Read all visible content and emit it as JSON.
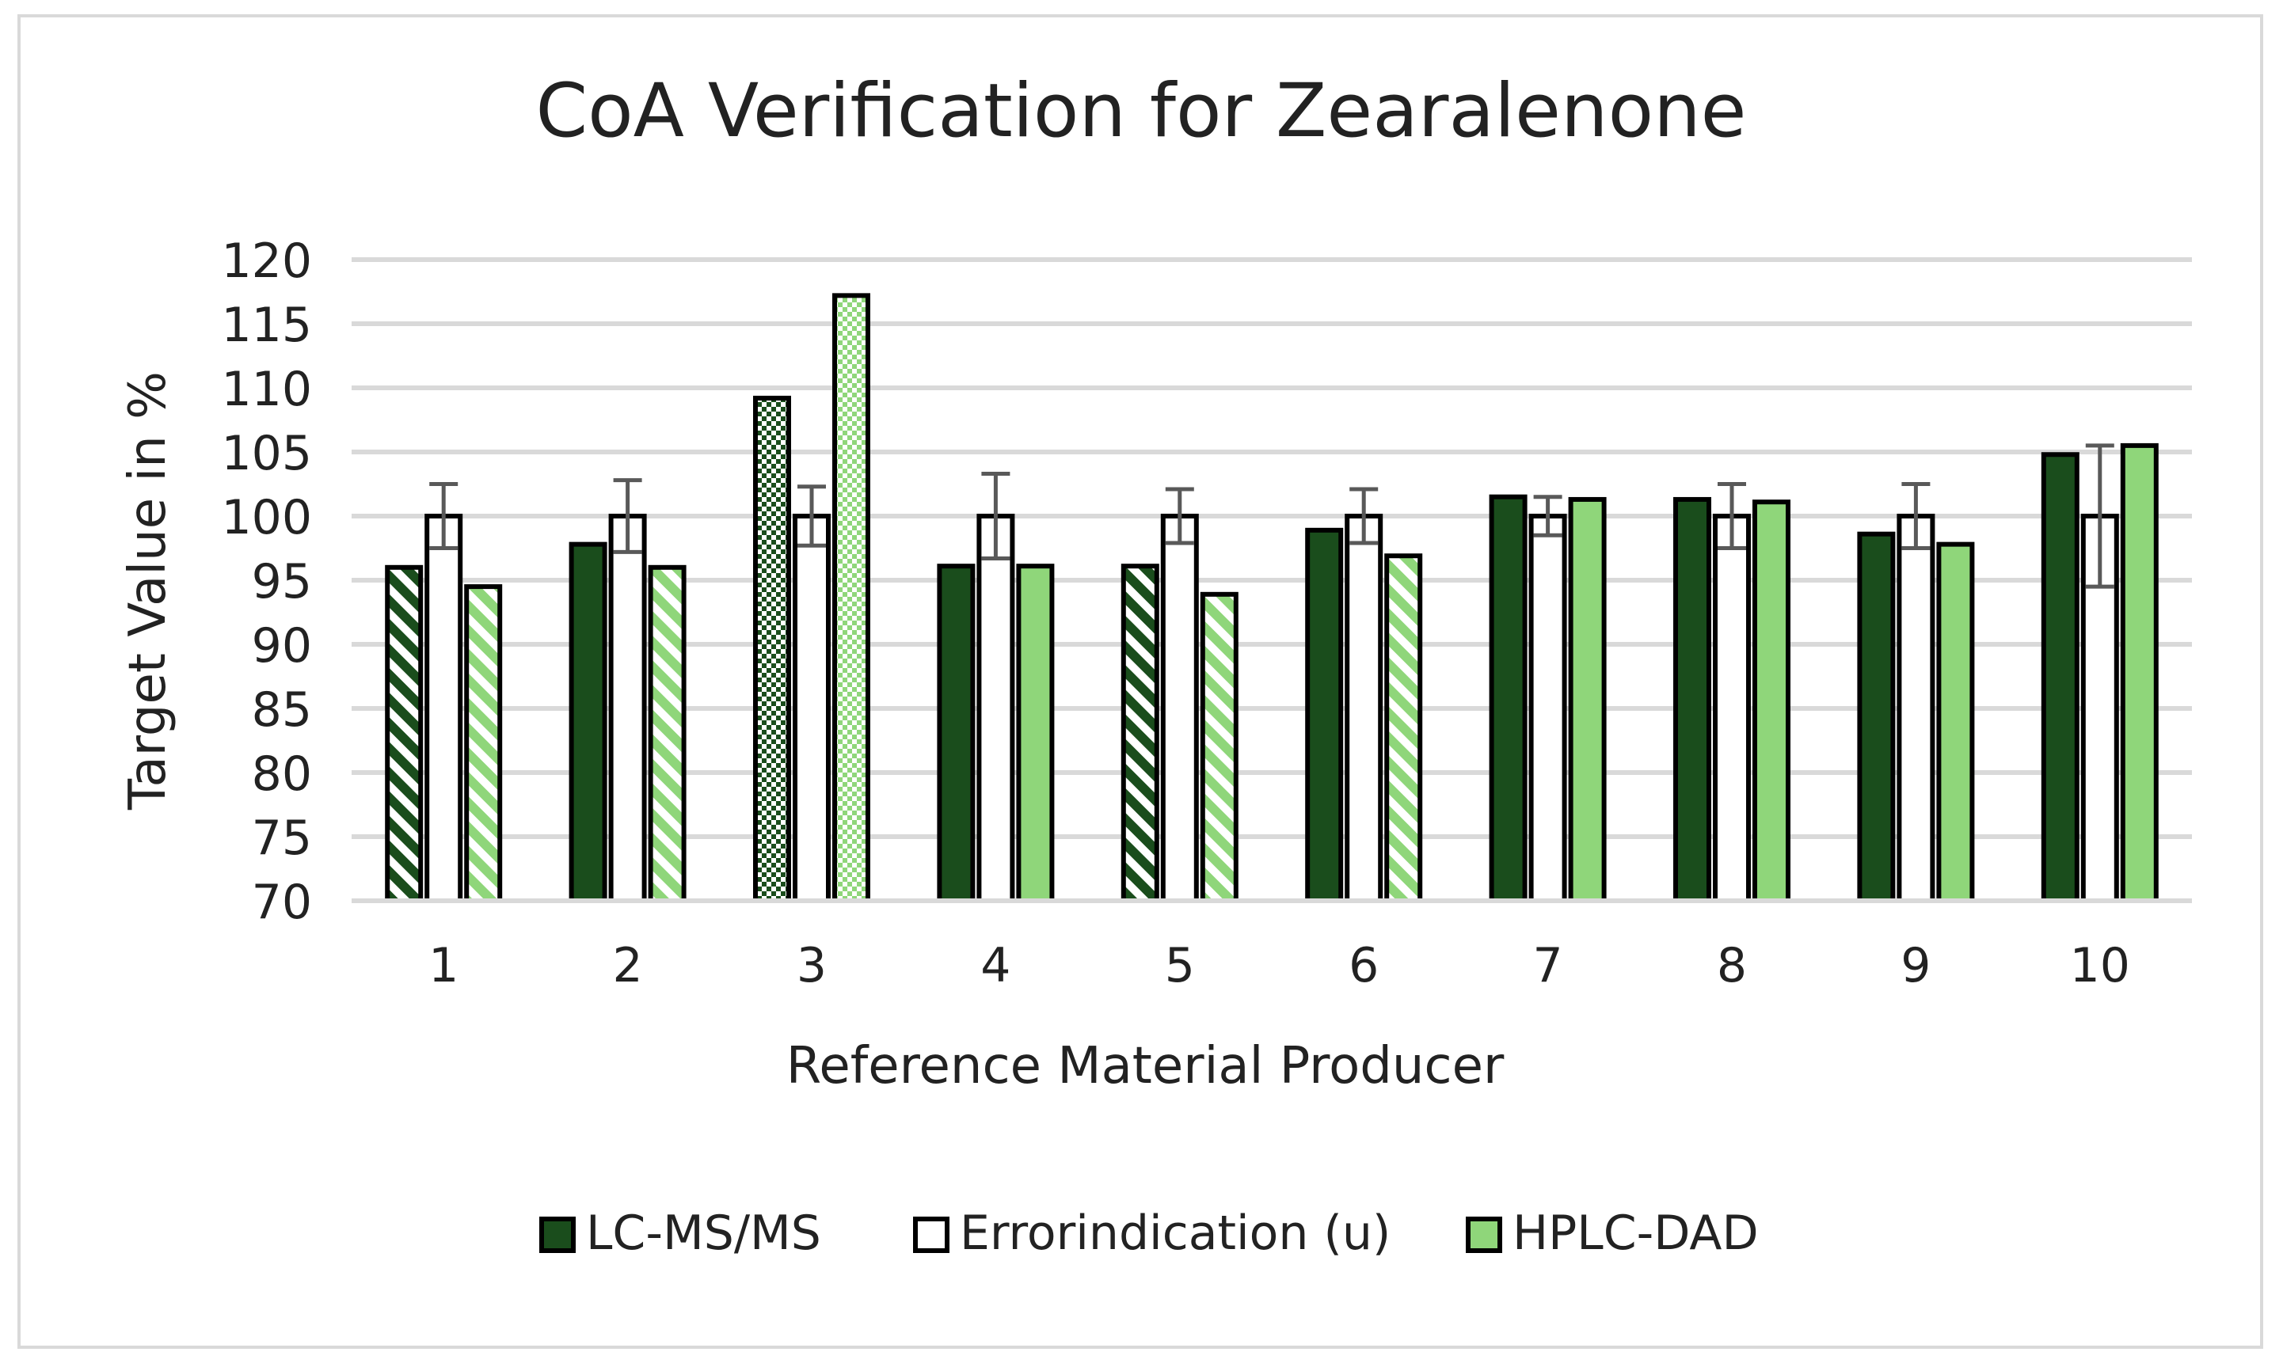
{
  "chart_data": {
    "type": "bar",
    "title": "CoA Verification for Zearalenone",
    "xlabel": "Reference Material Producer",
    "ylabel": "Target Value in %",
    "ylim": [
      70,
      120
    ],
    "yticks": [
      70,
      75,
      80,
      85,
      90,
      95,
      100,
      105,
      110,
      115,
      120
    ],
    "gridlines": true,
    "legend_position": "bottom",
    "categories": [
      "1",
      "2",
      "3",
      "4",
      "5",
      "6",
      "7",
      "8",
      "9",
      "10"
    ],
    "series": [
      {
        "name": "LC-MS/MS",
        "color": "#1a4d1c",
        "values": [
          96.0,
          97.8,
          109.2,
          96.1,
          96.1,
          98.9,
          101.5,
          101.3,
          98.6,
          104.8
        ],
        "patterns": [
          "hatch",
          "solid",
          "checker",
          "solid",
          "hatch",
          "solid",
          "solid",
          "solid",
          "solid",
          "solid"
        ]
      },
      {
        "name": "Errorindication (u)",
        "color": "#ffffff",
        "values": [
          100,
          100,
          100,
          100,
          100,
          100,
          100,
          100,
          100,
          100
        ],
        "errors": [
          2.5,
          2.8,
          2.3,
          3.3,
          2.1,
          2.1,
          1.5,
          2.5,
          2.5,
          5.5
        ]
      },
      {
        "name": "HPLC-DAD",
        "color": "#8fd67a",
        "values": [
          94.5,
          96.0,
          117.2,
          96.1,
          93.9,
          96.9,
          101.3,
          101.1,
          97.8,
          105.5
        ],
        "patterns": [
          "hatch",
          "hatch",
          "checker",
          "solid",
          "hatch",
          "hatch",
          "solid",
          "solid",
          "solid",
          "solid"
        ]
      }
    ]
  }
}
